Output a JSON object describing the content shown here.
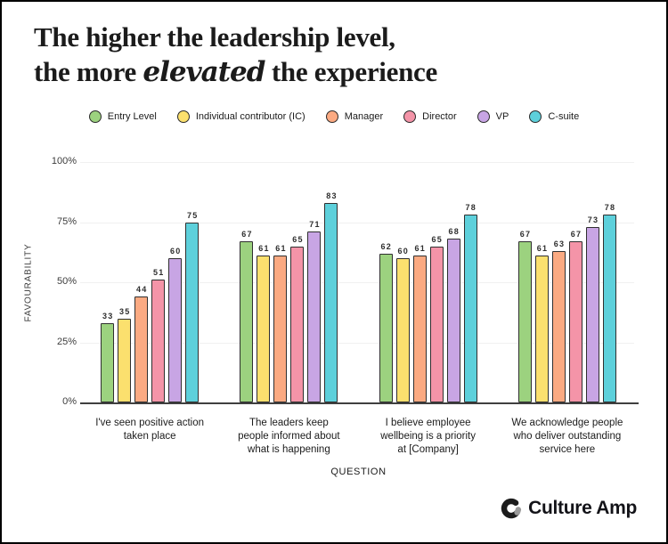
{
  "title": {
    "line1": "The higher the leadership level,",
    "line2_pre": "the more ",
    "line2_script": "elevated",
    "line2_post": " the experience"
  },
  "chart_data": {
    "type": "bar",
    "title": "The higher the leadership level, the more elevated the experience",
    "xlabel": "QUESTION",
    "ylabel": "FAVOURABILITY",
    "ylim": [
      0,
      100
    ],
    "yticks": [
      "0%",
      "25%",
      "50%",
      "75%",
      "100%"
    ],
    "grid": "horizontal",
    "legend_position": "top",
    "categories": [
      "I've seen positive action taken place",
      "The leaders keep people informed about what is happening",
      "I believe employee wellbeing is a priority at [Company]",
      "We acknowledge people who deliver outstanding service here"
    ],
    "category_lines": [
      [
        "I've seen positive action",
        "taken place"
      ],
      [
        "The leaders keep",
        "people informed about",
        "what is happening"
      ],
      [
        "I believe employee",
        "wellbeing is a priority",
        "at [Company]"
      ],
      [
        "We acknowledge people",
        "who deliver outstanding",
        "service here"
      ]
    ],
    "series": [
      {
        "name": "Entry Level",
        "color": "#9CD27F",
        "values": [
          33,
          67,
          62,
          67
        ]
      },
      {
        "name": "Individual contributor (IC)",
        "color": "#FBE06E",
        "values": [
          35,
          61,
          60,
          61
        ]
      },
      {
        "name": "Manager",
        "color": "#FBAA82",
        "values": [
          44,
          61,
          61,
          63
        ]
      },
      {
        "name": "Director",
        "color": "#F494A8",
        "values": [
          51,
          65,
          65,
          67
        ]
      },
      {
        "name": "VP",
        "color": "#C8A5E4",
        "values": [
          60,
          71,
          68,
          73
        ]
      },
      {
        "name": "C-suite",
        "color": "#5DD0DB",
        "values": [
          75,
          83,
          78,
          78
        ]
      }
    ]
  },
  "colors": {
    "bar_outline": "#2f2f2f",
    "axis_line": "#3f3f3f",
    "gridline": "#f0f0f0",
    "text_dark": "#1b1b1b"
  },
  "footer": {
    "brand": "Culture Amp"
  }
}
